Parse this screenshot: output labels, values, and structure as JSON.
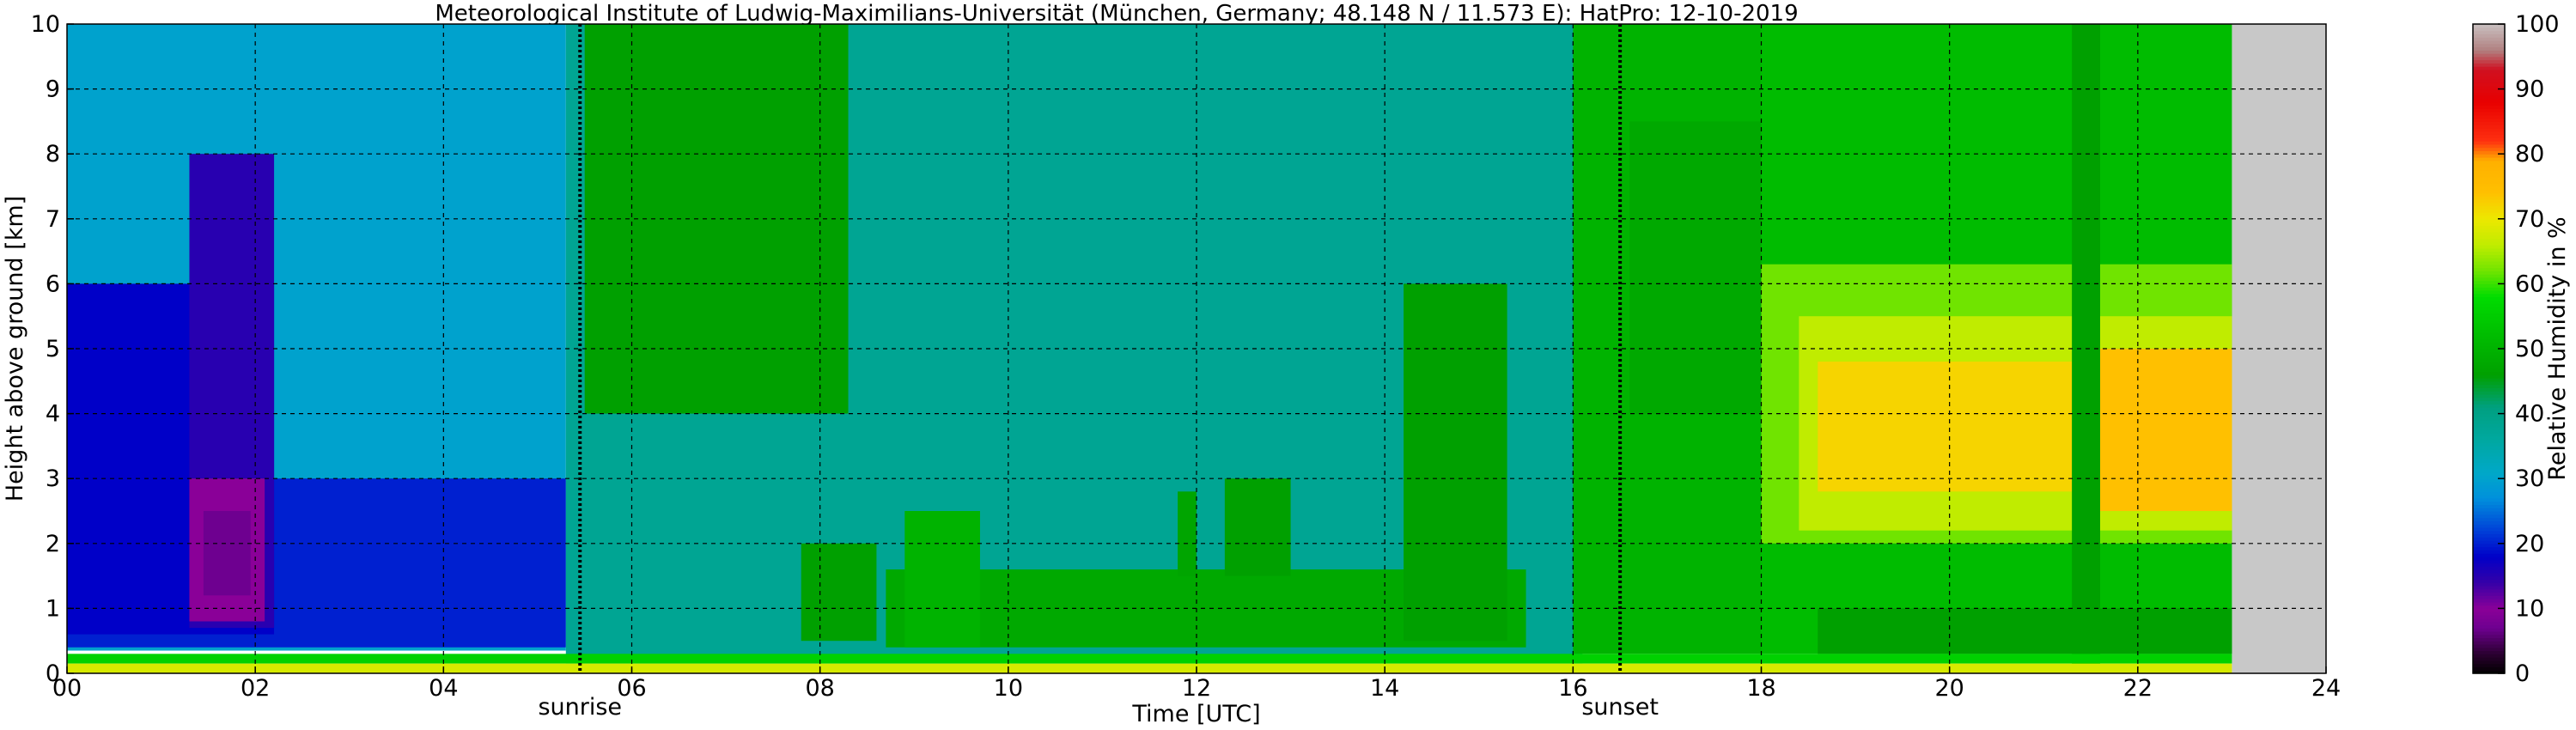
{
  "chart_data": {
    "type": "heatmap",
    "title": "Meteorological Institute of Ludwig-Maximilians-Universität (München, Germany; 48.148 N / 11.573 E):    HatPro: 12-10-2019",
    "xlabel": "Time [UTC]",
    "ylabel": "Height above ground [km]",
    "xlim": [
      0,
      24
    ],
    "ylim": [
      0,
      10
    ],
    "x_ticks": [
      "00",
      "02",
      "04",
      "06",
      "08",
      "10",
      "12",
      "14",
      "16",
      "18",
      "20",
      "22",
      "24"
    ],
    "y_ticks": [
      "0",
      "1",
      "2",
      "3",
      "4",
      "5",
      "6",
      "7",
      "8",
      "9",
      "10"
    ],
    "grid": true,
    "data_end_time": 23.0,
    "annotations": [
      {
        "label": "sunrise",
        "time": 5.45
      },
      {
        "label": "sunset",
        "time": 16.5
      }
    ],
    "colorbar": {
      "label": "Relative Humidity in %",
      "range": [
        0,
        100
      ],
      "ticks": [
        "0",
        "10",
        "20",
        "30",
        "40",
        "50",
        "60",
        "70",
        "80",
        "90",
        "100"
      ]
    },
    "regions": [
      {
        "t0": 0.0,
        "t1": 5.3,
        "h0": 0.35,
        "h1": 10.0,
        "rh": 30
      },
      {
        "t0": 0.0,
        "t1": 5.3,
        "h0": 0.4,
        "h1": 3.0,
        "rh": 20
      },
      {
        "t0": 0.0,
        "t1": 2.2,
        "h0": 0.6,
        "h1": 6.0,
        "rh": 18
      },
      {
        "t0": 1.3,
        "t1": 2.2,
        "h0": 0.7,
        "h1": 8.0,
        "rh": 15
      },
      {
        "t0": 1.3,
        "t1": 2.1,
        "h0": 0.8,
        "h1": 3.0,
        "rh": 10
      },
      {
        "t0": 1.45,
        "t1": 1.95,
        "h0": 1.2,
        "h1": 2.5,
        "rh": 7
      },
      {
        "t0": 5.3,
        "t1": 16.1,
        "h0": 0.15,
        "h1": 10.0,
        "rh": 38
      },
      {
        "t0": 5.5,
        "t1": 8.3,
        "h0": 4.0,
        "h1": 10.0,
        "rh": 46
      },
      {
        "t0": 7.8,
        "t1": 8.6,
        "h0": 0.5,
        "h1": 2.0,
        "rh": 46
      },
      {
        "t0": 8.7,
        "t1": 15.5,
        "h0": 0.4,
        "h1": 1.6,
        "rh": 48
      },
      {
        "t0": 8.9,
        "t1": 9.7,
        "h0": 0.4,
        "h1": 2.5,
        "rh": 50
      },
      {
        "t0": 11.8,
        "t1": 12.0,
        "h0": 1.5,
        "h1": 2.8,
        "rh": 47
      },
      {
        "t0": 12.3,
        "t1": 13.0,
        "h0": 1.5,
        "h1": 3.0,
        "rh": 46
      },
      {
        "t0": 14.2,
        "t1": 15.3,
        "h0": 0.5,
        "h1": 6.0,
        "rh": 46
      },
      {
        "t0": 16.0,
        "t1": 18.0,
        "h0": 0.3,
        "h1": 10.0,
        "rh": 50
      },
      {
        "t0": 16.6,
        "t1": 18.0,
        "h0": 4.0,
        "h1": 8.5,
        "rh": 48
      },
      {
        "t0": 18.0,
        "t1": 23.0,
        "h0": 0.3,
        "h1": 10.0,
        "rh": 52
      },
      {
        "t0": 18.0,
        "t1": 23.0,
        "h0": 2.0,
        "h1": 6.3,
        "rh": 62
      },
      {
        "t0": 18.4,
        "t1": 23.0,
        "h0": 2.2,
        "h1": 5.5,
        "rh": 66
      },
      {
        "t0": 18.6,
        "t1": 21.3,
        "h0": 2.8,
        "h1": 4.8,
        "rh": 72
      },
      {
        "t0": 21.6,
        "t1": 23.0,
        "h0": 2.5,
        "h1": 5.0,
        "rh": 74
      },
      {
        "t0": 21.3,
        "t1": 21.6,
        "h0": 0.0,
        "h1": 10.0,
        "rh": 46
      },
      {
        "t0": 18.6,
        "t1": 23.0,
        "h0": 0.3,
        "h1": 1.0,
        "rh": 46
      },
      {
        "t0": 0.0,
        "t1": 23.0,
        "h0": 0.15,
        "h1": 0.3,
        "rh": 56
      },
      {
        "t0": 0.0,
        "t1": 23.0,
        "h0": 0.0,
        "h1": 0.15,
        "rh": 68
      }
    ]
  }
}
